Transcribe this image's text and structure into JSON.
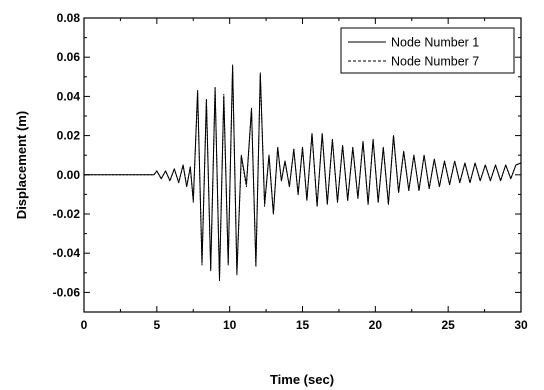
{
  "chart_data": {
    "type": "line",
    "title": "",
    "xlabel": "Time (sec)",
    "ylabel": "Displacement (m)",
    "xlim": [
      0,
      30
    ],
    "ylim": [
      -0.07,
      0.08
    ],
    "x_ticks": [
      0,
      5,
      10,
      15,
      20,
      25,
      30
    ],
    "x_tick_labels": [
      "0",
      "5",
      "10",
      "15",
      "20",
      "25",
      "30"
    ],
    "y_ticks": [
      -0.06,
      -0.04,
      -0.02,
      0.0,
      0.02,
      0.04,
      0.06,
      0.08
    ],
    "y_tick_labels": [
      "-0.06",
      "-0.04",
      "-0.02",
      "0.00",
      "0.02",
      "0.04",
      "0.06",
      "0.08"
    ],
    "grid": false,
    "legend_position": "top-right",
    "series": [
      {
        "name": "Node Number 1",
        "style": "solid",
        "color": "#000000",
        "x": [
          0,
          4.5,
          4.8,
          5.0,
          5.3,
          5.6,
          5.9,
          6.2,
          6.5,
          6.8,
          7.05,
          7.3,
          7.5,
          7.8,
          8.1,
          8.4,
          8.7,
          9.0,
          9.3,
          9.6,
          9.9,
          10.2,
          10.5,
          10.8,
          11.15,
          11.5,
          11.8,
          12.1,
          12.4,
          12.7,
          13.0,
          13.3,
          13.55,
          13.8,
          14.1,
          14.4,
          14.7,
          15.0,
          15.3,
          15.65,
          16.0,
          16.35,
          16.7,
          17.05,
          17.4,
          17.75,
          18.1,
          18.45,
          18.8,
          19.15,
          19.5,
          19.85,
          20.2,
          20.55,
          20.9,
          21.25,
          21.6,
          21.95,
          22.3,
          22.65,
          23.0,
          23.35,
          23.7,
          24.05,
          24.4,
          24.75,
          25.1,
          25.45,
          25.8,
          26.15,
          26.5,
          26.85,
          27.2,
          27.55,
          27.9,
          28.25,
          28.6,
          28.95,
          29.3,
          29.65,
          30.0
        ],
        "values": [
          0.0,
          0.0,
          0.0,
          0.002,
          -0.002,
          0.002,
          -0.003,
          0.003,
          -0.004,
          0.005,
          -0.006,
          0.004,
          -0.013,
          0.043,
          -0.045,
          0.038,
          -0.048,
          0.044,
          -0.053,
          0.04,
          -0.045,
          0.056,
          -0.05,
          0.01,
          -0.005,
          0.034,
          -0.046,
          0.052,
          -0.015,
          0.01,
          -0.02,
          0.014,
          -0.003,
          0.007,
          -0.006,
          0.013,
          -0.01,
          0.014,
          -0.013,
          0.021,
          -0.016,
          0.021,
          -0.015,
          0.018,
          -0.014,
          0.015,
          -0.013,
          0.014,
          -0.012,
          0.017,
          -0.015,
          0.018,
          -0.014,
          0.014,
          -0.015,
          0.02,
          -0.009,
          0.012,
          -0.008,
          0.01,
          -0.008,
          0.01,
          -0.007,
          0.008,
          -0.006,
          0.007,
          -0.005,
          0.007,
          -0.004,
          0.006,
          -0.004,
          0.006,
          -0.003,
          0.005,
          -0.003,
          0.005,
          -0.003,
          0.005,
          -0.002,
          0.005,
          0.006
        ]
      },
      {
        "name": "Node Number 7",
        "style": "dashed",
        "color": "#000000",
        "x": [
          0,
          4.5,
          4.8,
          5.0,
          5.3,
          5.6,
          5.9,
          6.2,
          6.5,
          6.8,
          7.05,
          7.3,
          7.5,
          7.8,
          8.1,
          8.4,
          8.7,
          9.0,
          9.3,
          9.6,
          9.9,
          10.2,
          10.5,
          10.8,
          11.15,
          11.5,
          11.8,
          12.1,
          12.4,
          12.7,
          13.0,
          13.3,
          13.55,
          13.8,
          14.1,
          14.4,
          14.7,
          15.0,
          15.3,
          15.65,
          16.0,
          16.35,
          16.7,
          17.05,
          17.4,
          17.75,
          18.1,
          18.45,
          18.8,
          19.15,
          19.5,
          19.85,
          20.2,
          20.55,
          20.9,
          21.25,
          21.6,
          21.95,
          22.3,
          22.65,
          23.0,
          23.35,
          23.7,
          24.05,
          24.4,
          24.75,
          25.1,
          25.45,
          25.8,
          26.15,
          26.5,
          26.85,
          27.2,
          27.55,
          27.9,
          28.25,
          28.6,
          28.95,
          29.3,
          29.65,
          30.0
        ],
        "values": [
          0.0,
          0.0,
          0.0,
          0.002,
          -0.002,
          0.002,
          -0.003,
          0.003,
          -0.004,
          0.005,
          -0.006,
          0.004,
          -0.014,
          0.042,
          -0.046,
          0.039,
          -0.049,
          0.045,
          -0.054,
          0.041,
          -0.046,
          0.055,
          -0.051,
          0.009,
          -0.006,
          0.033,
          -0.047,
          0.051,
          -0.016,
          0.01,
          -0.02,
          0.014,
          -0.003,
          0.007,
          -0.006,
          0.013,
          -0.01,
          0.014,
          -0.013,
          0.021,
          -0.016,
          0.021,
          -0.015,
          0.018,
          -0.014,
          0.015,
          -0.013,
          0.014,
          -0.012,
          0.017,
          -0.015,
          0.018,
          -0.014,
          0.014,
          -0.015,
          0.02,
          -0.009,
          0.012,
          -0.008,
          0.01,
          -0.008,
          0.01,
          -0.007,
          0.008,
          -0.006,
          0.007,
          -0.005,
          0.007,
          -0.004,
          0.006,
          -0.004,
          0.006,
          -0.003,
          0.005,
          -0.003,
          0.005,
          -0.003,
          0.005,
          -0.002,
          0.005,
          0.006
        ]
      }
    ]
  }
}
